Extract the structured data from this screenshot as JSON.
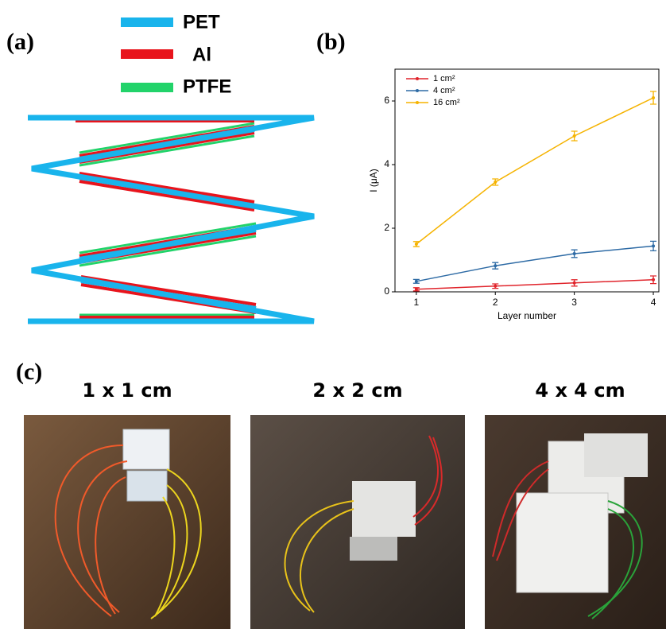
{
  "panel_labels": [
    "(a)",
    "(b)",
    "(c)"
  ],
  "diagram": {
    "legend": [
      "PET",
      "Al",
      "PTFE"
    ]
  },
  "chart_data": {
    "type": "line",
    "xlabel": "Layer number",
    "ylabel": "I (μA)",
    "x": [
      1,
      2,
      3,
      4
    ],
    "series": [
      {
        "name": "1 cm²",
        "color": "#e0242b",
        "values": [
          0.08,
          0.18,
          0.28,
          0.38
        ],
        "errors": [
          0.05,
          0.07,
          0.1,
          0.12
        ]
      },
      {
        "name": "4 cm²",
        "color": "#2e6ba5",
        "values": [
          0.33,
          0.82,
          1.2,
          1.44
        ],
        "errors": [
          0.06,
          0.1,
          0.12,
          0.15
        ]
      },
      {
        "name": "16 cm²",
        "color": "#f5b300",
        "values": [
          1.5,
          3.45,
          4.9,
          6.1
        ],
        "errors": [
          0.08,
          0.1,
          0.15,
          0.2
        ]
      }
    ],
    "xlim": [
      0.73,
      4.07
    ],
    "ylim": [
      0,
      7
    ],
    "xticks": [
      1,
      2,
      3,
      4
    ],
    "yticks": [
      0,
      2,
      4,
      6
    ],
    "legend": "upper left"
  },
  "photos": [
    "1 x 1 cm",
    "2 x 2 cm",
    "4 x 4 cm"
  ]
}
